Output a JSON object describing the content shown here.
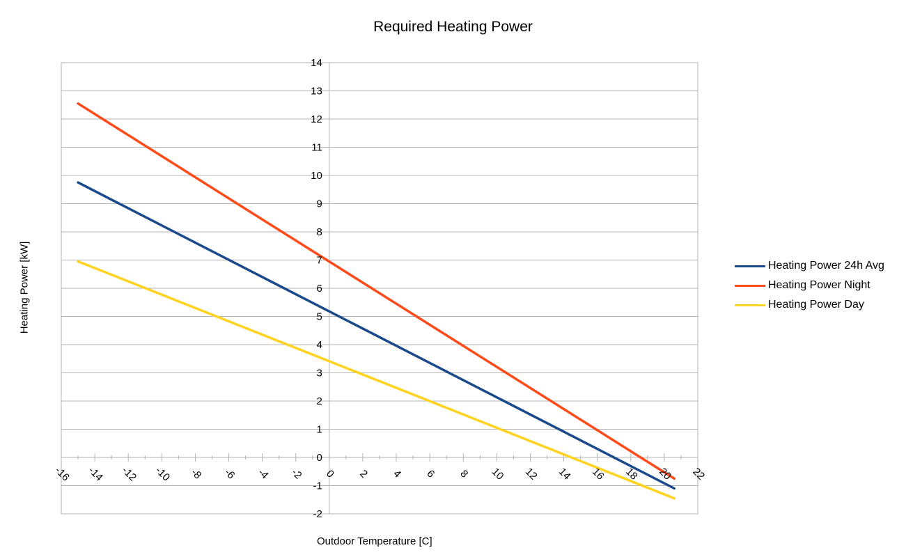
{
  "chart_data": {
    "type": "line",
    "title": "Required Heating Power",
    "xlabel": "Outdoor Temperature [C]",
    "ylabel": "Heating Power [kW]",
    "xlim": [
      -16,
      22
    ],
    "ylim": [
      -2,
      14
    ],
    "x_ticks": [
      -16,
      -14,
      -12,
      -10,
      -8,
      -6,
      -4,
      -2,
      0,
      2,
      4,
      6,
      8,
      10,
      12,
      14,
      16,
      18,
      20,
      22
    ],
    "y_ticks": [
      -2,
      -1,
      0,
      1,
      2,
      3,
      4,
      5,
      6,
      7,
      8,
      9,
      10,
      11,
      12,
      13,
      14
    ],
    "grid": "horizontal",
    "legend_position": "right",
    "series": [
      {
        "name": "Heating Power 24h Avg",
        "color": "#1a4a8a",
        "x": [
          -15,
          20.6
        ],
        "y": [
          9.75,
          -1.1
        ]
      },
      {
        "name": "Heating Power Night",
        "color": "#ff4a1a",
        "x": [
          -15,
          20.6
        ],
        "y": [
          12.55,
          -0.75
        ]
      },
      {
        "name": "Heating Power Day",
        "color": "#ffd320",
        "x": [
          -15,
          20.6
        ],
        "y": [
          6.95,
          -1.45
        ]
      }
    ]
  }
}
